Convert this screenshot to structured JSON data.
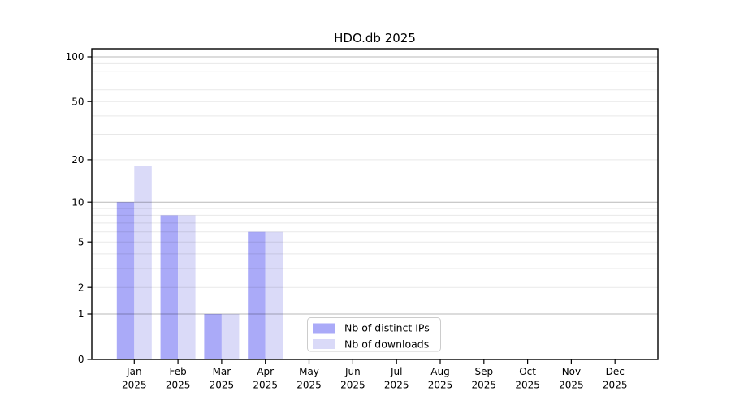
{
  "chart_data": {
    "type": "bar",
    "title": "HDO.db 2025",
    "categories": [
      "Jan",
      "Feb",
      "Mar",
      "Apr",
      "May",
      "Jun",
      "Jul",
      "Aug",
      "Sep",
      "Oct",
      "Nov",
      "Dec"
    ],
    "category_year": "2025",
    "series": [
      {
        "name": "Nb of distinct IPs",
        "color": "#aaaaf8",
        "values": [
          10,
          8,
          1,
          6,
          0,
          0,
          0,
          0,
          0,
          0,
          0,
          0
        ]
      },
      {
        "name": "Nb of downloads",
        "color": "#dadaf8",
        "values": [
          18,
          8,
          1,
          6,
          0,
          0,
          0,
          0,
          0,
          0,
          0,
          0
        ]
      }
    ],
    "yscale": "log1p",
    "ylim": [
      0,
      113
    ],
    "y_tick_labels": [
      0,
      1,
      2,
      5,
      10,
      20,
      50,
      100
    ],
    "y_major_gridlines": [
      1,
      10,
      100
    ],
    "y_minor_gridlines": [
      2,
      3,
      4,
      5,
      6,
      7,
      8,
      9,
      20,
      30,
      40,
      50,
      60,
      70,
      80,
      90
    ],
    "grid": true,
    "legend_position": "lower center",
    "colors": {
      "axis": "#000000",
      "grid_major": "#b8b8b8",
      "grid_minor": "#e8e8e8",
      "legend_border": "#cccccc",
      "background": "#ffffff"
    }
  }
}
